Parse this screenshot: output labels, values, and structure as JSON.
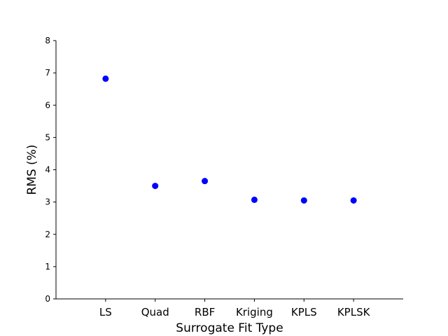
{
  "chart_data": {
    "type": "scatter",
    "title": "",
    "xlabel": "Surrogate Fit Type",
    "ylabel": "RMS (%)",
    "categories": [
      "LS",
      "Quad",
      "RBF",
      "Kriging",
      "KPLS",
      "KPLSK"
    ],
    "series": [
      {
        "values": [
          6.82,
          3.5,
          3.65,
          3.07,
          3.05,
          3.05
        ]
      }
    ],
    "ylim": [
      0,
      8
    ],
    "yticks": [
      0,
      1,
      2,
      3,
      4,
      5,
      6,
      7,
      8
    ],
    "grid": false,
    "legend": "none",
    "colors": {
      "marker": "#0000ff",
      "axis": "#000000"
    }
  }
}
